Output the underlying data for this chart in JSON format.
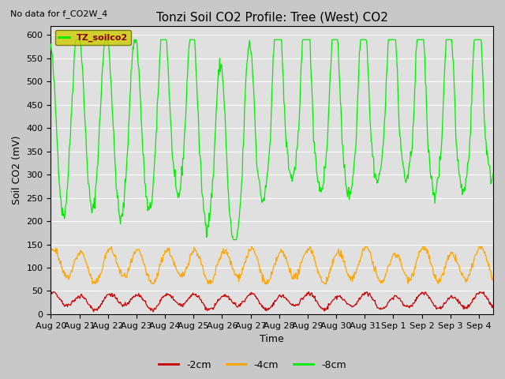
{
  "title": "Tonzi Soil CO2 Profile: Tree (West) CO2",
  "subtitle": "No data for f_CO2W_4",
  "ylabel": "Soil CO2 (mV)",
  "xlabel": "Time",
  "ylim": [
    0,
    620
  ],
  "yticks": [
    0,
    50,
    100,
    150,
    200,
    250,
    300,
    350,
    400,
    450,
    500,
    550,
    600
  ],
  "legend_labels": [
    "-2cm",
    "-4cm",
    "-8cm"
  ],
  "legend_colors": [
    "#cc0000",
    "#ffa500",
    "#00ee00"
  ],
  "line_colors": [
    "#cc0000",
    "#ffa500",
    "#00ee00"
  ],
  "fig_bg_color": "#c8c8c8",
  "plot_bg_color": "#e0e0e0",
  "inner_legend_label": "TZ_soilco2",
  "inner_legend_bg": "#cccc00",
  "inner_legend_text_color": "#8b0000",
  "title_fontsize": 11,
  "axis_fontsize": 9,
  "tick_fontsize": 8
}
